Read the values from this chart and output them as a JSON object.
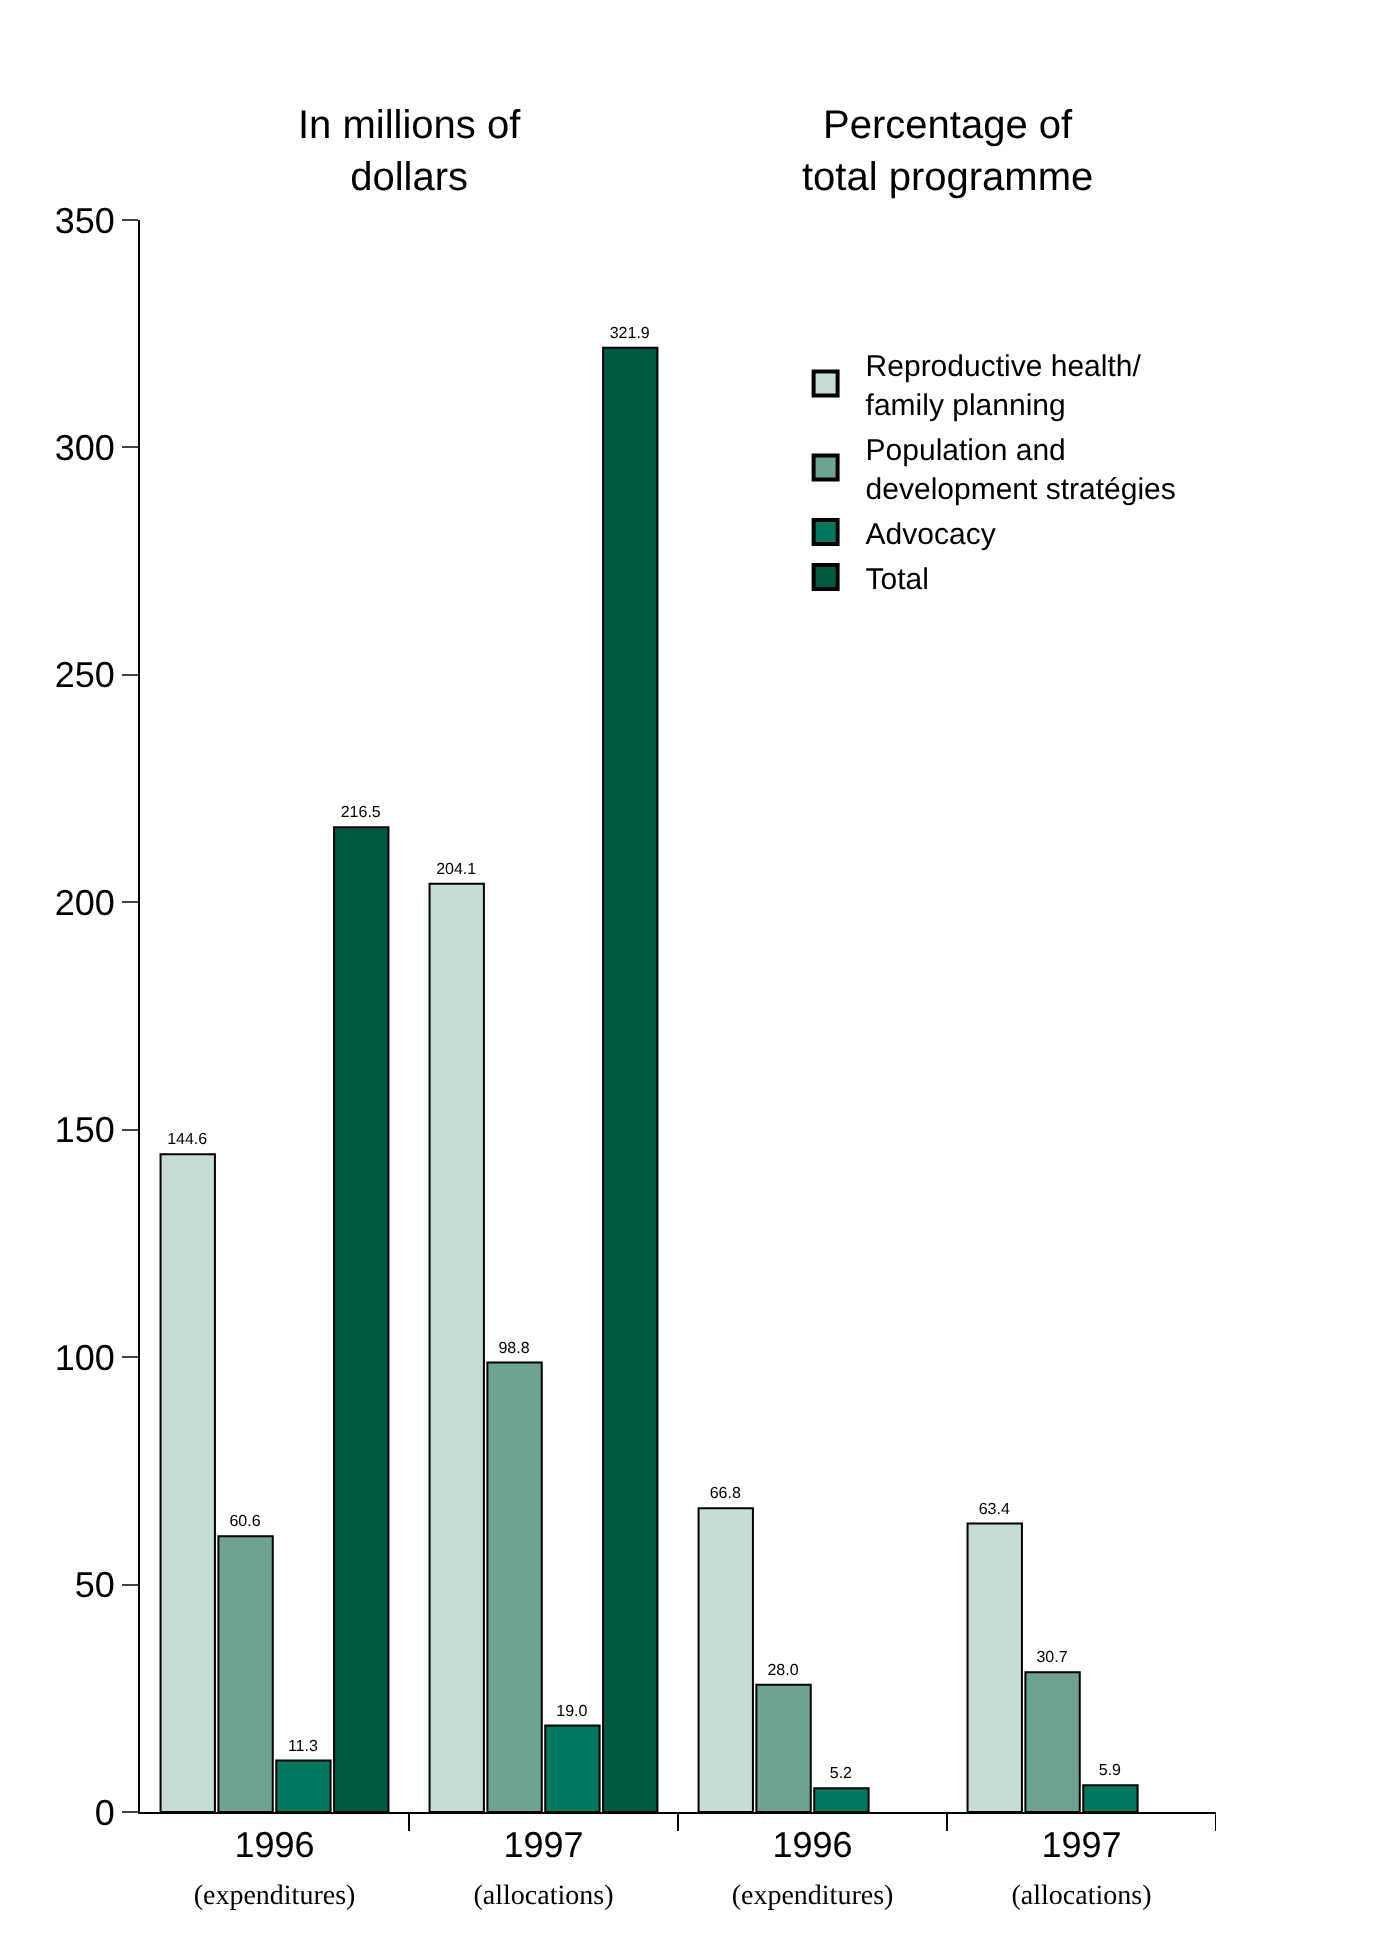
{
  "chart_data": {
    "type": "bar",
    "categories": [
      "1996\n(expenditures)",
      "1997\n(allocations)",
      "1996\n(expenditures)",
      "1997\n(allocations)"
    ],
    "series": [
      {
        "name": "Reproductive health/\nfamily planning",
        "color": "#c6ddd5",
        "values": [
          144.6,
          204.1,
          66.8,
          63.4
        ],
        "value_labels": [
          "144.6",
          "204.1",
          "66.8",
          "63.4"
        ]
      },
      {
        "name": "Population and\ndevelopment stratégies",
        "color": "#6fa391",
        "values": [
          60.6,
          98.8,
          28.0,
          30.7
        ],
        "value_labels": [
          "60.6",
          "98.8",
          "28.0",
          "30.7"
        ]
      },
      {
        "name": "Advocacy",
        "color": "#00775f",
        "values": [
          11.3,
          19.0,
          5.2,
          5.9
        ],
        "value_labels": [
          "11.3",
          "19.0",
          "5.2",
          "5.9"
        ]
      },
      {
        "name": "Total",
        "color": "#005a42",
        "values": [
          216.5,
          321.9,
          null,
          null
        ],
        "value_labels": [
          "216.5",
          "321.9",
          null,
          null
        ]
      }
    ],
    "annotations": [
      "In millions of\ndollars",
      "Percentage of\ntotal programme"
    ],
    "ylim": [
      0,
      350
    ],
    "yticks": [
      0,
      50,
      100,
      150,
      200,
      250,
      300,
      350
    ],
    "legend": "top right"
  }
}
